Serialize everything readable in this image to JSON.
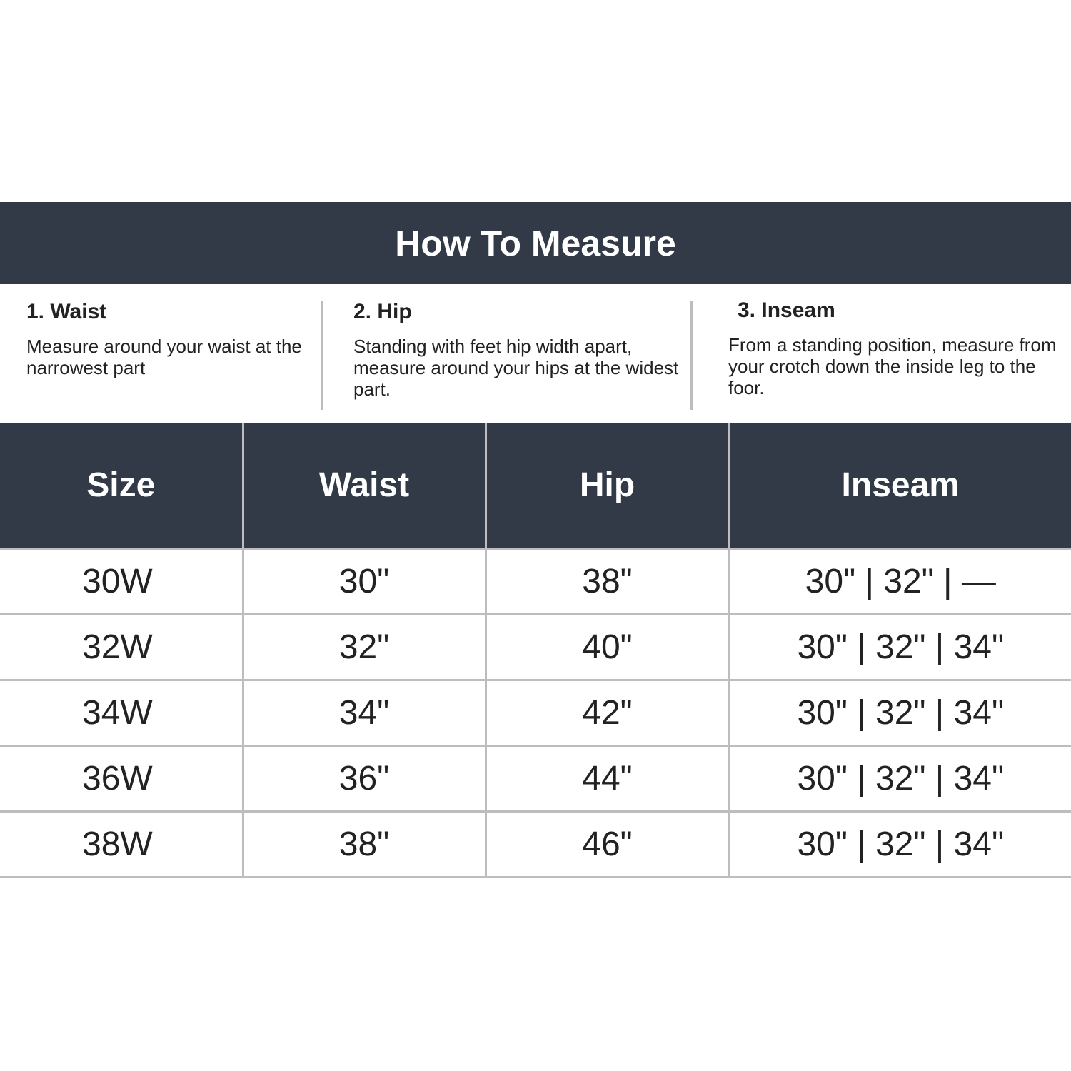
{
  "title": "How To Measure",
  "steps": [
    {
      "heading": "1. Waist",
      "text": "Measure around your waist at the narrowest part"
    },
    {
      "heading": "2. Hip",
      "text": "Standing with feet hip width apart, measure around your hips at the widest part."
    },
    {
      "heading": "3. Inseam",
      "text": "From a standing position, measure from your crotch down the inside leg to the foor."
    }
  ],
  "table": {
    "headers": [
      "Size",
      "Waist",
      "Hip",
      "Inseam"
    ],
    "rows": [
      [
        "30W",
        "30\"",
        "38\"",
        "30\" | 32\" | —"
      ],
      [
        "32W",
        "32\"",
        "40\"",
        "30\" | 32\" | 34\""
      ],
      [
        "34W",
        "34\"",
        "42\"",
        "30\" | 32\" | 34\""
      ],
      [
        "36W",
        "36\"",
        "44\"",
        "30\" | 32\" | 34\""
      ],
      [
        "38W",
        "38\"",
        "46\"",
        "30\" | 32\" | 34\""
      ]
    ]
  },
  "colors": {
    "header_bg": "#323a47",
    "divider": "#bdbdbd"
  }
}
